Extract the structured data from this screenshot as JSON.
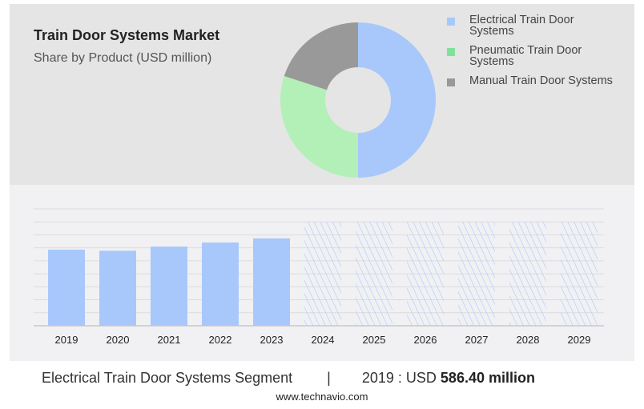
{
  "header": {
    "title": "Train Door Systems Market",
    "subtitle": "Share by Product (USD million)"
  },
  "chart_data": [
    {
      "type": "pie",
      "title": "Train Door Systems Market",
      "subtitle": "Share by Product (USD million)",
      "legend_position": "right",
      "labels": [
        "Electrical Train Door Systems",
        "Pneumatic Train Door Systems",
        "Manual Train Door Systems"
      ],
      "values": [
        50,
        30,
        20
      ],
      "colors": [
        "#a8c8fb",
        "#b2f0b8",
        "#999999"
      ],
      "legend_colors": [
        "#a8c8fb",
        "#7ee39a",
        "#999999"
      ]
    },
    {
      "type": "bar",
      "categories": [
        "2019",
        "2020",
        "2021",
        "2022",
        "2023",
        "2024",
        "2025",
        "2026",
        "2027",
        "2028",
        "2029"
      ],
      "values": [
        586.4,
        578,
        610,
        641,
        673,
        null,
        null,
        null,
        null,
        null,
        null
      ],
      "forecast": [
        false,
        false,
        false,
        false,
        false,
        true,
        true,
        true,
        true,
        true,
        true
      ],
      "forecast_level": 800,
      "ylim": [
        0,
        900
      ],
      "grid": true,
      "color": "#a8c8fb"
    }
  ],
  "footer": {
    "segment": "Electrical Train Door Systems Segment",
    "separator": "|",
    "year_label": "2019 : USD",
    "value": "586.40 million",
    "site": "www.technavio.com"
  }
}
